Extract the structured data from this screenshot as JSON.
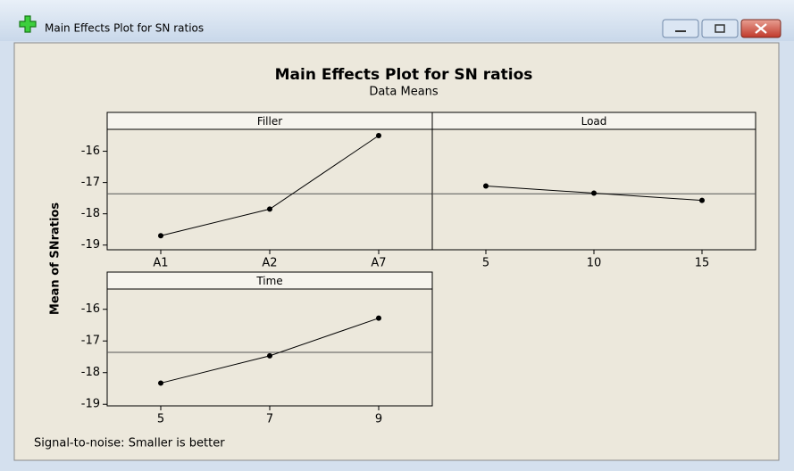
{
  "window": {
    "title": "Main Effects Plot for SN ratios"
  },
  "title": "Main Effects Plot for SN ratios",
  "subtitle": "Data Means",
  "ylabel": "Mean of SNratios",
  "footnote": "Signal-to-noise: Smaller is better",
  "chart_data": [
    {
      "type": "line",
      "title": "Filler",
      "categories": [
        "A1",
        "A2",
        "A7"
      ],
      "values": [
        -18.7,
        -17.85,
        -15.5
      ],
      "mean": -17.36,
      "color": "#000000",
      "ylim": [
        -19.15,
        -15.3
      ],
      "yticks": [
        -16,
        -17,
        -18,
        -19
      ]
    },
    {
      "type": "line",
      "title": "Load",
      "categories": [
        "5",
        "10",
        "15"
      ],
      "values": [
        -17.11,
        -17.34,
        -17.57
      ],
      "mean": -17.36,
      "color": "#000000",
      "ylim": [
        -19.15,
        -15.3
      ]
    },
    {
      "type": "line",
      "title": "Time",
      "categories": [
        "5",
        "7",
        "9"
      ],
      "values": [
        -18.33,
        -17.47,
        -16.28
      ],
      "mean": -17.36,
      "color": "#000000",
      "ylim": [
        -19.05,
        -15.36
      ],
      "yticks": [
        -16,
        -17,
        -18,
        -19
      ]
    }
  ]
}
